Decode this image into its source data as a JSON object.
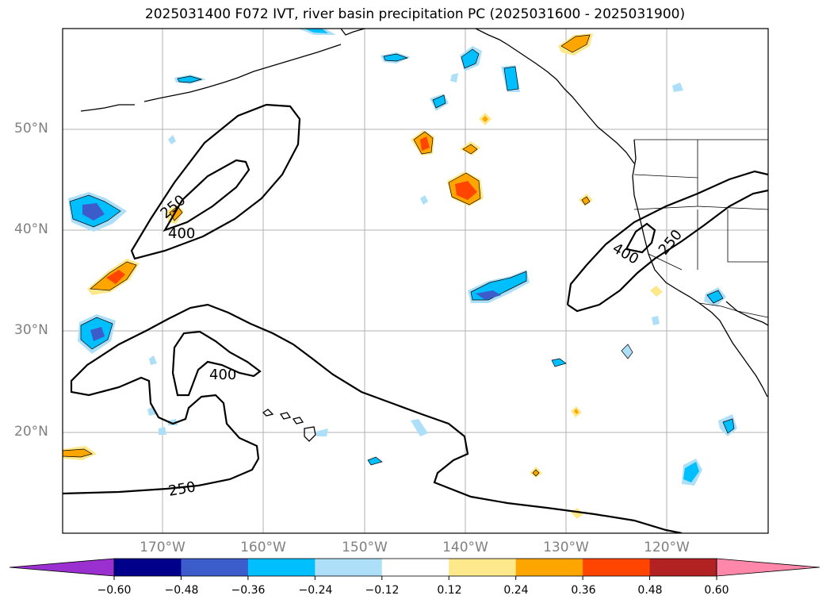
{
  "title": "2025031400 F072 IVT, river basin precipitation PC (2025031600 - 2025031900)",
  "lat_labels": [
    "50°N",
    "40°N",
    "30°N",
    "20°N"
  ],
  "lon_labels": [
    "170°W",
    "160°W",
    "150°W",
    "140°W",
    "130°W",
    "120°W"
  ],
  "contour_labels": [
    "250",
    "400",
    "250",
    "400",
    "400",
    "250"
  ],
  "colorbar": {
    "ticks": [
      "−0.60",
      "−0.48",
      "−0.36",
      "−0.24",
      "−0.12",
      "0.12",
      "0.24",
      "0.36",
      "0.48",
      "0.60"
    ],
    "colors": [
      "#9b30d0",
      "#00008b",
      "#3c5ccc",
      "#00bfff",
      "#ade0f8",
      "#ffffff",
      "#fde98b",
      "#ffa500",
      "#ff4500",
      "#b22222",
      "#ff88aa"
    ]
  },
  "colors": {
    "grid": "#b0b0b0",
    "coast": "#000000",
    "contour": "#000000"
  }
}
